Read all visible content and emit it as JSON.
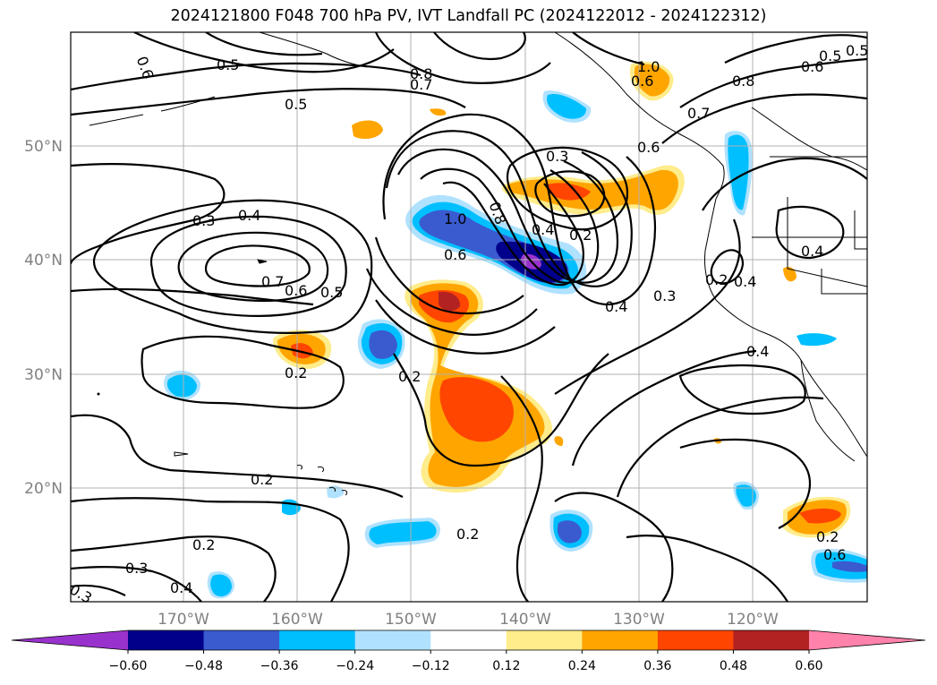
{
  "title": "2024121800 F048 700 hPa PV, IVT Landfall PC (2024122012 - 2024122312)",
  "map": {
    "lat_labels": [
      "50°N",
      "40°N",
      "30°N",
      "20°N"
    ],
    "lon_labels": [
      "170°W",
      "160°W",
      "150°W",
      "140°W",
      "130°W",
      "120°W"
    ],
    "contour_labels": [
      "0.5",
      "0.6",
      "0.8",
      "0.7",
      "0.5",
      "1.0",
      "0.8",
      "0.7",
      "0.6",
      "0.5",
      "0.3",
      "0.4",
      "0.7",
      "0.6",
      "0.5",
      "1.0",
      "0.8",
      "0.6",
      "0.4",
      "0.3",
      "0.2",
      "0.6",
      "0.4",
      "0.3",
      "0.2",
      "0.4",
      "0.2",
      "0.2",
      "0.2",
      "0.2",
      "0.3",
      "0.4",
      "0.3",
      "0.2",
      "0.4",
      "0.2",
      "0.5",
      "0.4",
      "0.6",
      "0.6"
    ]
  },
  "colorbar": {
    "colors": [
      "#9932cc",
      "#00008b",
      "#3a5bd0",
      "#00bfff",
      "#b0e2ff",
      "#ffffff",
      "#ffec8b",
      "#ffa500",
      "#ff4500",
      "#b22222",
      "#ff82ab"
    ],
    "tick_labels": [
      "−0.60",
      "−0.48",
      "−0.36",
      "−0.24",
      "−0.12",
      "0.12",
      "0.24",
      "0.36",
      "0.48",
      "0.60"
    ]
  }
}
